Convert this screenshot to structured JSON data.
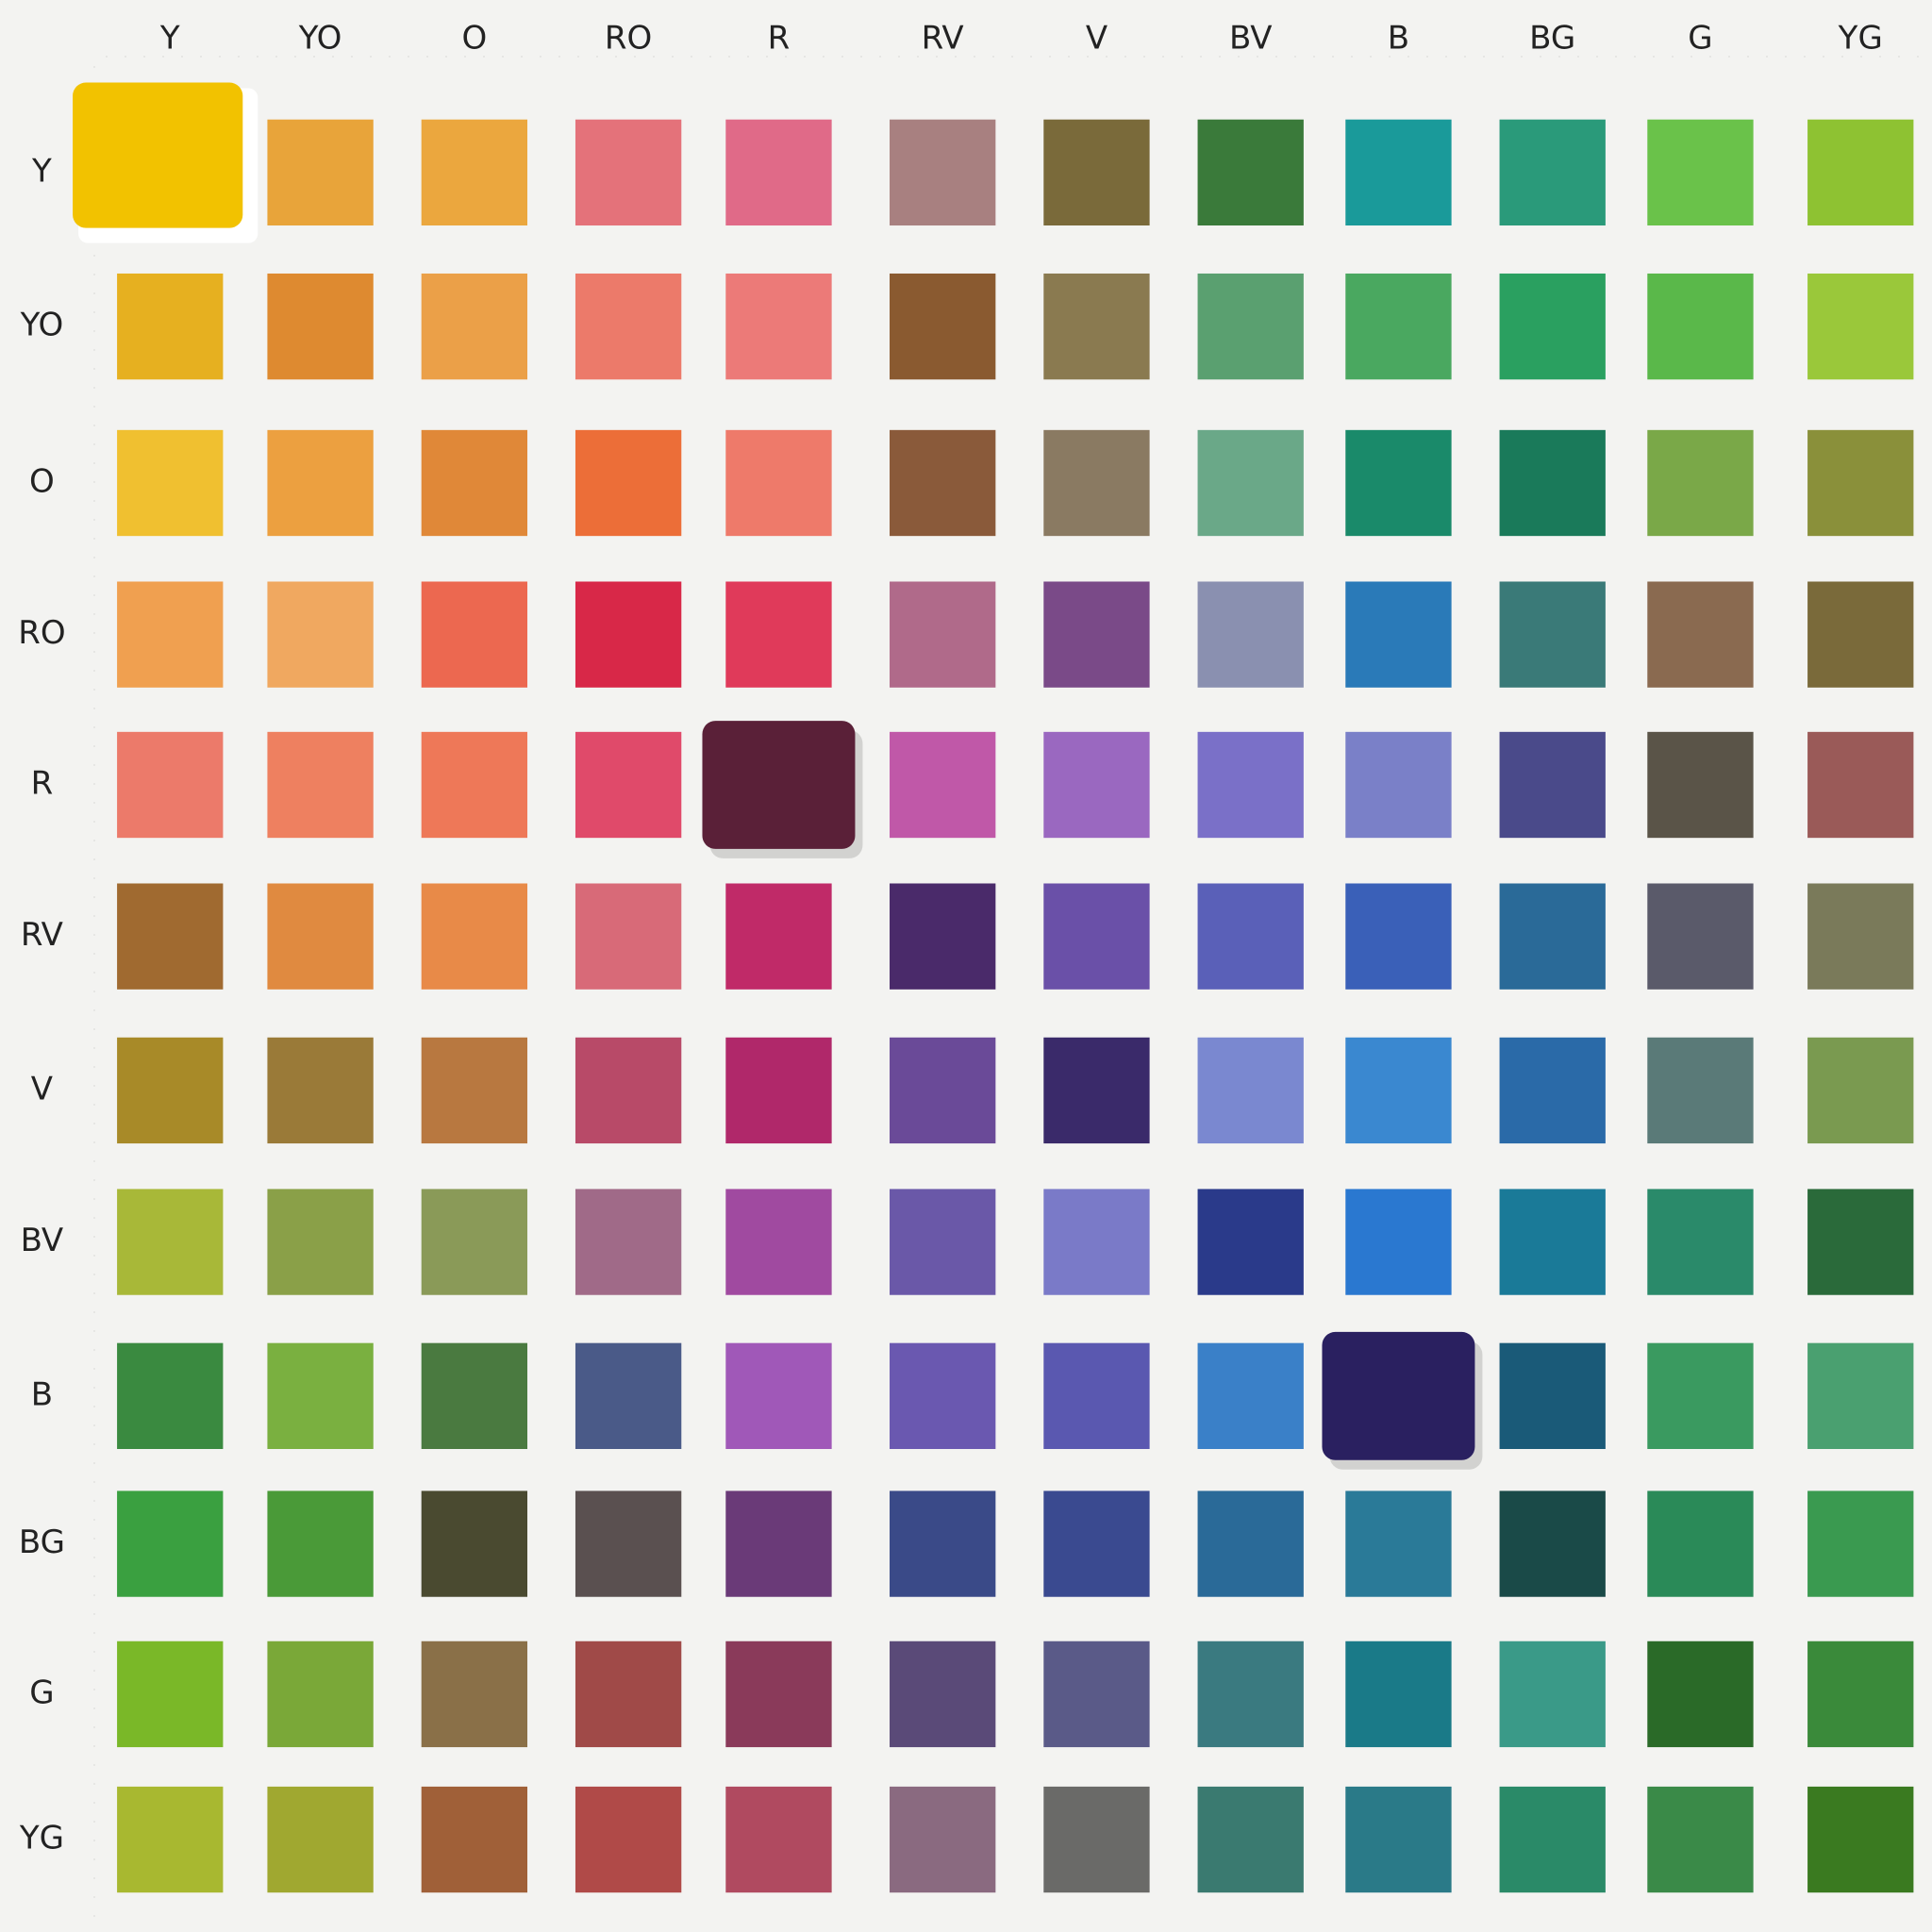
{
  "columns": [
    "Y",
    "YO",
    "O",
    "RO",
    "R",
    "RV",
    "V",
    "BV",
    "B",
    "BG",
    "G",
    "YG"
  ],
  "rows": [
    {
      "label": "Y",
      "colors": [
        "#f2c200",
        "#e8a43a",
        "#eba73e",
        "#e4727a",
        "#e06a88",
        "#a88080",
        "#7a6a3a",
        "#3a7a3a",
        "#1a9a9a",
        "#2a9a7a",
        "#6ac24a",
        "#8ec232"
      ]
    },
    {
      "label": "YO",
      "colors": [
        "#e6b020",
        "#de8a30",
        "#eba048",
        "#ec7a6a",
        "#ec7a78",
        "#8a5a30",
        "#8a7a50",
        "#5aa070",
        "#4aa860",
        "#2aa060",
        "#5ab84a",
        "#9ac83a"
      ]
    },
    {
      "label": "O",
      "colors": [
        "#f0c030",
        "#eca040",
        "#e08838",
        "#ec6e38",
        "#ee7a6a",
        "#8a5a3a",
        "#8a7a62",
        "#6aa888",
        "#1a8a6a",
        "#1a7a5a",
        "#7aa848",
        "#8a903a"
      ]
    },
    {
      "label": "RO",
      "colors": [
        "#f0a050",
        "#f0a860",
        "#ec6850",
        "#d82848",
        "#e03a5a",
        "#b06a8a",
        "#7a4a88",
        "#8a90b0",
        "#2a7ab8",
        "#3a7a78",
        "#8a6a50",
        "#7a6a3a"
      ]
    },
    {
      "label": "R",
      "colors": [
        "#ec7a6a",
        "#ee8060",
        "#ee7858",
        "#e04a6a",
        "#5a2038",
        "#c058a8",
        "#9a68c0",
        "#7a70c8",
        "#7a80c8",
        "#4a4a8a",
        "#5a5448",
        "#9a5a58"
      ]
    },
    {
      "label": "RV",
      "colors": [
        "#a06a30",
        "#e08a40",
        "#e88a48",
        "#d86a78",
        "#c02a68",
        "#4a2a6a",
        "#6a50a8",
        "#5a60b8",
        "#3a60b8",
        "#2a6a98",
        "#5a5a6a",
        "#7a7a5a"
      ]
    },
    {
      "label": "V",
      "colors": [
        "#a88a28",
        "#9a7a38",
        "#b87840",
        "#b84a68",
        "#b0286a",
        "#6a4a98",
        "#3a2a6a",
        "#7a88d0",
        "#3a88d0",
        "#2a6aa8",
        "#5a7a78",
        "#7a9a50"
      ]
    },
    {
      "label": "BV",
      "colors": [
        "#a8b838",
        "#8aa048",
        "#8a9a58",
        "#a06a88",
        "#a04aa0",
        "#6a58a8",
        "#7a7ac8",
        "#2a3a8a",
        "#2a78d0",
        "#1a7a98",
        "#2a8a6a",
        "#2a6a3a"
      ]
    },
    {
      "label": "B",
      "colors": [
        "#3a8a40",
        "#7ab040",
        "#4a7a40",
        "#4a5a88",
        "#a058b8",
        "#6a58b0",
        "#5a58b0",
        "#3a80c8",
        "#2a2060",
        "#1a5a78",
        "#3a9a60",
        "#4aa070"
      ]
    },
    {
      "label": "BG",
      "colors": [
        "#3aa040",
        "#4a9a38",
        "#4a4a30",
        "#5a5050",
        "#6a3a78",
        "#3a4a88",
        "#3a4a90",
        "#2a6a98",
        "#2a7a98",
        "#1a4a48",
        "#2a8a58",
        "#3a9a50"
      ]
    },
    {
      "label": "G",
      "colors": [
        "#7ab828",
        "#7aa838",
        "#8a7048",
        "#a04a48",
        "#8a3a5a",
        "#5a4a78",
        "#5a5a88",
        "#3a7a80",
        "#1a7a88",
        "#3a9a88",
        "#2a6a28",
        "#3a8a3a"
      ]
    },
    {
      "label": "YG",
      "colors": [
        "#a8b830",
        "#a0a830",
        "#a06038",
        "#b04a48",
        "#b04a60",
        "#8a6a80",
        "#6a6a68",
        "#3a7a70",
        "#2a7a88",
        "#2a8a68",
        "#3a8a48",
        "#3a7a20"
      ]
    }
  ]
}
